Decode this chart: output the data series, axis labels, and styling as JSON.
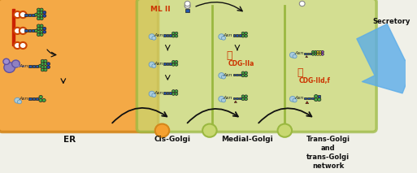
{
  "bg_color": "#f0f0e8",
  "er_color": "#f5a030",
  "er_border": "#d4861a",
  "golgi_color": "#c8d870",
  "golgi_border": "#9ab840",
  "secretory_arrow_color": "#5aace8",
  "er_label": "ER",
  "cis_label": "Cis-Golgi",
  "medial_label": "Medial-Golgi",
  "trans_label": "Trans-Golgi\nand\ntrans-Golgi\nnetwork",
  "secretory_label": "Secretory",
  "ml2_label": "ML II",
  "cdg2a_label": "CDG-IIa",
  "cdg2d_label": "CDG-IId,f",
  "green_circle": "#44aa44",
  "blue_square": "#2255aa",
  "purple_circle": "#9955bb",
  "yellow_circle": "#ddcc22",
  "red_triangle": "#bb2200",
  "asn_color": "#222222",
  "cdg_color": "#cc3300",
  "ml_color": "#cc3300",
  "arrow_color": "#111111",
  "ribosome_color": "#aaccdd",
  "ribosome_edge": "#6699bb",
  "dol_color": "#cc4400",
  "er_red_bar": "#cc2200",
  "fig_width": 5.13,
  "fig_height": 2.13
}
